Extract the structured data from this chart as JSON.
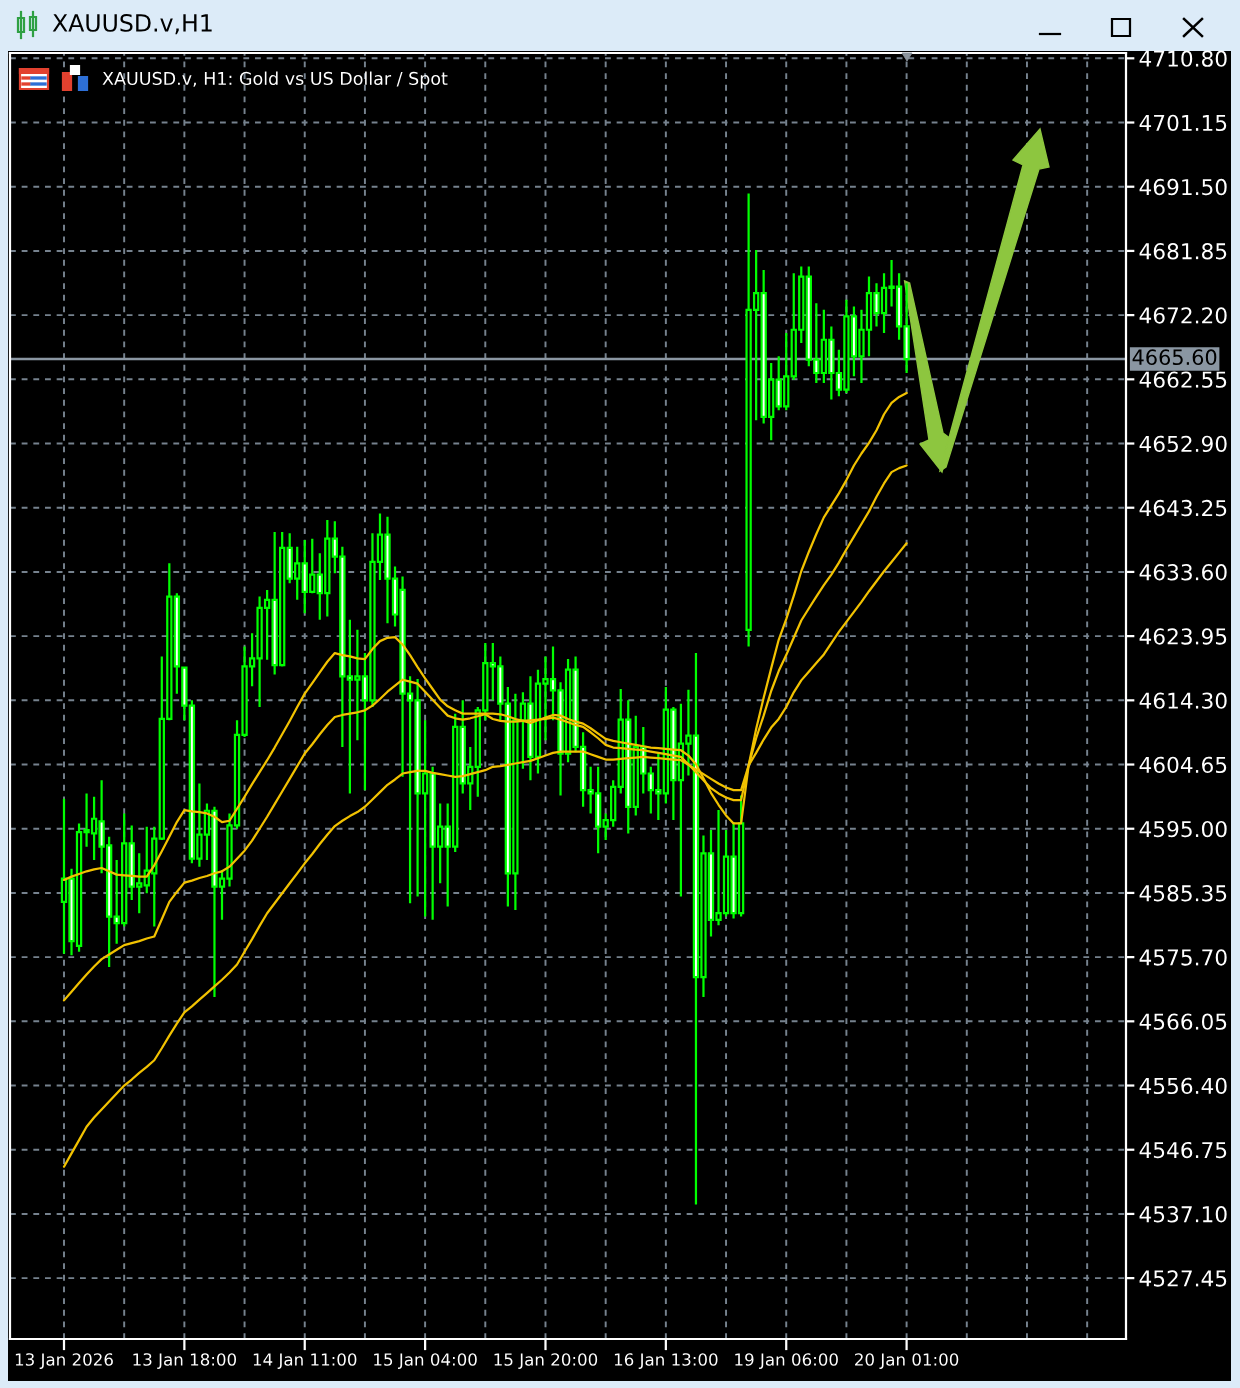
{
  "chart_data": {
    "type": "candlestick",
    "title": "XAUUSD.v,H1",
    "subtitle": "XAUUSD.v, H1: Gold vs US Dollar / Spot",
    "categories": [
      "13 Jan 2026",
      null,
      null,
      null,
      null,
      null,
      null,
      null,
      null,
      null,
      null,
      null,
      null,
      null,
      null,
      null,
      "13 Jan 18:00",
      null,
      null,
      null,
      null,
      null,
      null,
      null,
      null,
      null,
      null,
      null,
      null,
      null,
      null,
      null,
      "14 Jan 11:00",
      null,
      null,
      null,
      null,
      null,
      null,
      null,
      null,
      null,
      null,
      null,
      null,
      null,
      null,
      null,
      "15 Jan 04:00",
      null,
      null,
      null,
      null,
      null,
      null,
      null,
      null,
      null,
      null,
      null,
      null,
      null,
      null,
      null,
      "15 Jan 20:00",
      null,
      null,
      null,
      null,
      null,
      null,
      null,
      null,
      null,
      null,
      null,
      null,
      null,
      null,
      null,
      "16 Jan 13:00",
      null,
      null,
      null,
      null,
      null,
      null,
      null,
      null,
      null,
      null,
      null,
      null,
      null,
      null,
      null,
      "19 Jan 06:00",
      null,
      null,
      null,
      null,
      null,
      null,
      null,
      null,
      null,
      null,
      null,
      null,
      null,
      null,
      null,
      "20 Jan 01:00"
    ],
    "ylim": [
      4518.3,
      4711.6
    ],
    "yticks": [
      {
        "value": 4710.8,
        "label": "4710.80"
      },
      4701.15,
      {
        "value": 4691.5,
        "label": "4691.50"
      },
      4681.85,
      {
        "value": 4672.2,
        "label": "4672.20"
      },
      4662.55,
      {
        "value": 4652.9,
        "label": "4652.90"
      },
      4643.25,
      {
        "value": 4633.6,
        "label": "4633.60"
      },
      4623.95,
      {
        "value": 4614.3,
        "label": "4614.30"
      },
      4604.65,
      {
        "value": 4595,
        "label": "4595.00"
      },
      4585.35,
      {
        "value": 4575.7,
        "label": "4575.70"
      },
      4566.05,
      {
        "value": 4556.4,
        "label": "4556.40"
      },
      4546.75,
      {
        "value": 4537.1,
        "label": "4537.10"
      },
      4527.45
    ],
    "grid": true,
    "ref_lines": [
      {
        "axis": "y",
        "value": 4665.6,
        "label": "4665.60",
        "color": "#8a96a2"
      }
    ],
    "series": [
      {
        "color": "#00ff00",
        "ohlc": [
          [
            4584.0,
            4599.5,
            4576.2,
            4587.5
          ],
          [
            4587.5,
            4589.0,
            4576.0,
            4578.1
          ],
          [
            4577.4,
            4595.8,
            4576.5,
            4594.5
          ],
          [
            4594.5,
            4600.3,
            4592.3,
            4594.8
          ],
          [
            4594.3,
            4599.8,
            4590.3,
            4596.5
          ],
          [
            4596.1,
            4602.3,
            4588.3,
            4592.3
          ],
          [
            4592.5,
            4593.8,
            4574.2,
            4581.8
          ],
          [
            4581.8,
            4590.3,
            4577.7,
            4580.8
          ],
          [
            4580.8,
            4597.3,
            4580.3,
            4592.8
          ],
          [
            4592.8,
            4595.5,
            4584.3,
            4586.3
          ],
          [
            4586.3,
            4591.3,
            4582.3,
            4586.8
          ],
          [
            4586.5,
            4595.3,
            4585.3,
            4588.7
          ],
          [
            4588.3,
            4595.3,
            4580.3,
            4593.5
          ],
          [
            4593.5,
            4620.9,
            4593.3,
            4611.5
          ],
          [
            4611.5,
            4634.9,
            4611.3,
            4629.9
          ],
          [
            4629.9,
            4630.4,
            4615.3,
            4619.4
          ],
          [
            4619.2,
            4619.4,
            4611.3,
            4613.5
          ],
          [
            4613.5,
            4614.3,
            4589.8,
            4590.5
          ],
          [
            4590.5,
            4601.8,
            4589.3,
            4594.1
          ],
          [
            4594.1,
            4598.8,
            4590.3,
            4597.7
          ],
          [
            4597.7,
            4598.3,
            4569.7,
            4586.3
          ],
          [
            4586.3,
            4588.8,
            4581.3,
            4587.5
          ],
          [
            4587.5,
            4597.3,
            4586.3,
            4595.5
          ],
          [
            4595.5,
            4611.3,
            4595.0,
            4609.1
          ],
          [
            4609.1,
            4622.4,
            4608.8,
            4619.4
          ],
          [
            4619.4,
            4624.4,
            4616.4,
            4620.6
          ],
          [
            4620.6,
            4629.9,
            4613.3,
            4628.2
          ],
          [
            4628.2,
            4630.9,
            4620.4,
            4629.4
          ],
          [
            4629.4,
            4639.6,
            4618.2,
            4619.6
          ],
          [
            4619.6,
            4639.6,
            4619.4,
            4637.2
          ],
          [
            4637.2,
            4639.4,
            4631.9,
            4632.6
          ],
          [
            4632.6,
            4637.4,
            4629.4,
            4634.9
          ],
          [
            4634.9,
            4638.4,
            4627.4,
            4630.6
          ],
          [
            4630.6,
            4638.6,
            4630.4,
            4633.2
          ],
          [
            4633.2,
            4636.4,
            4626.4,
            4630.4
          ],
          [
            4630.4,
            4641.4,
            4626.9,
            4638.6
          ],
          [
            4638.6,
            4641.2,
            4633.4,
            4635.9
          ],
          [
            4635.9,
            4637.4,
            4607.3,
            4617.9
          ],
          [
            4617.9,
            4626.4,
            4600.3,
            4617.4
          ],
          [
            4617.4,
            4624.9,
            4608.3,
            4617.9
          ],
          [
            4617.9,
            4621.4,
            4600.8,
            4614.3
          ],
          [
            4614.3,
            4639.4,
            4613.3,
            4635.1
          ],
          [
            4635.1,
            4642.4,
            4632.4,
            4639.2
          ],
          [
            4639.2,
            4641.9,
            4625.9,
            4632.6
          ],
          [
            4632.6,
            4634.4,
            4625.4,
            4627.2
          ],
          [
            4630.9,
            4632.9,
            4602.8,
            4615.3
          ],
          [
            4615.3,
            4617.9,
            4583.8,
            4614.3
          ],
          [
            4614.3,
            4617.5,
            4584.8,
            4600.3
          ],
          [
            4600.3,
            4611.3,
            4581.8,
            4603.3
          ],
          [
            4603.3,
            4604.3,
            4581.3,
            4592.3
          ],
          [
            4592.3,
            4598.8,
            4586.8,
            4595.3
          ],
          [
            4595.3,
            4598.8,
            4583.3,
            4592.3
          ],
          [
            4592.3,
            4612.3,
            4591.5,
            4610.3
          ],
          [
            4610.3,
            4614.3,
            4600.3,
            4601.8
          ],
          [
            4601.8,
            4607.3,
            4597.8,
            4604.3
          ],
          [
            4604.3,
            4613.3,
            4599.8,
            4612.8
          ],
          [
            4612.8,
            4622.9,
            4611.3,
            4619.9
          ],
          [
            4619.9,
            4622.9,
            4614.3,
            4619.4
          ],
          [
            4619.4,
            4620.9,
            4611.3,
            4613.8
          ],
          [
            4613.8,
            4616.3,
            4583.3,
            4588.3
          ],
          [
            4588.3,
            4615.3,
            4582.8,
            4611.3
          ],
          [
            4611.3,
            4615.5,
            4604.0,
            4613.8
          ],
          [
            4613.8,
            4617.9,
            4602.3,
            4605.8
          ],
          [
            4605.8,
            4618.9,
            4603.3,
            4616.8
          ],
          [
            4616.8,
            4620.9,
            4608.3,
            4617.5
          ],
          [
            4617.5,
            4622.4,
            4611.3,
            4615.8
          ],
          [
            4615.8,
            4617.0,
            4600.0,
            4606.3
          ],
          [
            4606.3,
            4620.5,
            4605.0,
            4618.9
          ],
          [
            4618.9,
            4620.9,
            4606.5,
            4607.3
          ],
          [
            4607.3,
            4609.5,
            4598.3,
            4600.8
          ],
          [
            4600.8,
            4604.3,
            4597.3,
            4600.3
          ],
          [
            4600.3,
            4604.3,
            4591.3,
            4595.3
          ],
          [
            4595.3,
            4597.3,
            4593.3,
            4596.3
          ],
          [
            4596.3,
            4602.3,
            4595.3,
            4601.3
          ],
          [
            4601.3,
            4616.0,
            4600.3,
            4611.4
          ],
          [
            4611.4,
            4614.3,
            4594.3,
            4598.3
          ],
          [
            4598.3,
            4612.0,
            4597.0,
            4607.3
          ],
          [
            4607.3,
            4610.3,
            4600.3,
            4603.3
          ],
          [
            4603.3,
            4604.3,
            4597.3,
            4600.8
          ],
          [
            4600.8,
            4606.3,
            4596.3,
            4600.3
          ],
          [
            4600.3,
            4616.3,
            4598.8,
            4612.9
          ],
          [
            4612.9,
            4613.3,
            4596.3,
            4602.3
          ],
          [
            4602.3,
            4613.8,
            4584.8,
            4607.8
          ],
          [
            4607.8,
            4615.9,
            4603.0,
            4609.0
          ],
          [
            4609.0,
            4621.4,
            4538.5,
            4572.7
          ],
          [
            4572.7,
            4594.0,
            4569.7,
            4591.3
          ],
          [
            4591.3,
            4594.8,
            4578.8,
            4581.3
          ],
          [
            4581.3,
            4597.8,
            4580.5,
            4582.3
          ],
          [
            4582.3,
            4594.8,
            4581.8,
            4590.8
          ],
          [
            4590.8,
            4596.0,
            4581.5,
            4582.3
          ],
          [
            4582.3,
            4600.0,
            4581.8,
            4595.8
          ],
          [
            4624.9,
            4690.5,
            4622.4,
            4673.0
          ],
          [
            4673.0,
            4682.0,
            4656.4,
            4675.5
          ],
          [
            4675.5,
            4679.0,
            4655.9,
            4656.9
          ],
          [
            4656.9,
            4665.0,
            4653.4,
            4662.5
          ],
          [
            4662.5,
            4666.0,
            4657.9,
            4658.5
          ],
          [
            4658.5,
            4669.5,
            4657.9,
            4663.0
          ],
          [
            4663.0,
            4678.5,
            4662.5,
            4670.0
          ],
          [
            4670.0,
            4679.5,
            4668.0,
            4678.0
          ],
          [
            4678.0,
            4679.5,
            4664.5,
            4665.5
          ],
          [
            4665.5,
            4674.0,
            4662.0,
            4663.5
          ],
          [
            4663.5,
            4673.0,
            4662.0,
            4668.5
          ],
          [
            4668.5,
            4670.5,
            4659.5,
            4663.5
          ],
          [
            4663.5,
            4667.0,
            4660.0,
            4661.0
          ],
          [
            4661.0,
            4674.5,
            4660.5,
            4672.0
          ],
          [
            4672.0,
            4673.5,
            4663.0,
            4666.0
          ],
          [
            4666.0,
            4673.0,
            4662.0,
            4670.0
          ],
          [
            4670.0,
            4678.0,
            4666.0,
            4675.5
          ],
          [
            4675.5,
            4677.0,
            4670.5,
            4672.5
          ],
          [
            4672.5,
            4678.5,
            4669.5,
            4676.3
          ],
          [
            4676.3,
            4680.5,
            4673.5,
            4676.5
          ],
          [
            4676.5,
            4678.5,
            4668.5,
            4670.5
          ],
          [
            4670.5,
            4677.0,
            4663.5,
            4665.6
          ]
        ],
        "colors": [
          "#000000",
          "#ffffff",
          "#000000",
          "#000000",
          "#000000",
          "#ffffff",
          "#ffffff",
          "#ffffff",
          "#000000",
          "#ffffff",
          "#000000",
          "#000000",
          "#000000",
          "#000000",
          "#000000",
          "#ffffff",
          "#ffffff",
          "#ffffff",
          "#000000",
          "#000000",
          "#ffffff",
          "#000000",
          "#000000",
          "#000000",
          "#000000",
          "#000000",
          "#000000",
          "#000000",
          "#ffffff",
          "#000000",
          "#ffffff",
          "#000000",
          "#ffffff",
          "#000000",
          "#ffffff",
          "#000000",
          "#ffffff",
          "#ffffff",
          "#ffffff",
          "#000000",
          "#ffffff",
          "#000000",
          "#000000",
          "#ffffff",
          "#ffffff",
          "#ffffff",
          "#ffffff",
          "#ffffff",
          "#000000",
          "#ffffff",
          "#000000",
          "#ffffff",
          "#000000",
          "#ffffff",
          "#000000",
          "#000000",
          "#000000",
          "#ffffff",
          "#ffffff",
          "#ffffff",
          "#000000",
          "#000000",
          "#ffffff",
          "#000000",
          "#000000",
          "#ffffff",
          "#ffffff",
          "#000000",
          "#ffffff",
          "#ffffff",
          "#ffffff",
          "#ffffff",
          "#000000",
          "#000000",
          "#000000",
          "#ffffff",
          "#000000",
          "#ffffff",
          "#ffffff",
          "#ffffff",
          "#000000",
          "#ffffff",
          "#000000",
          "#000000",
          "#ffffff",
          "#000000",
          "#ffffff",
          "#000000",
          "#000000",
          "#ffffff",
          "#000000",
          "#000000",
          "#000000",
          "#ffffff",
          "#000000",
          "#ffffff",
          "#000000",
          "#000000",
          "#000000",
          "#ffffff",
          "#ffffff",
          "#000000",
          "#ffffff",
          "#ffffff",
          "#000000",
          "#ffffff",
          "#000000",
          "#000000",
          "#ffffff",
          "#000000",
          "#000000",
          "#ffffff",
          "#ffffff"
        ]
      },
      {
        "type": "line",
        "color": "#f2c200",
        "values": [
          4587.3,
          4587.8,
          4588.2,
          4588.6,
          4588.9,
          4589.1,
          4588.6,
          4588.1,
          4588.0,
          4587.9,
          4587.8,
          4587.8,
          4589.5,
          4591.6,
          4593.8,
          4596.0,
          4597.8,
          4597.6,
          4597.5,
          4597.3,
          4596.8,
          4596.0,
          4596.2,
          4598.0,
          4599.8,
          4601.7,
          4603.5,
          4605.3,
          4607.2,
          4609.2,
          4611.2,
          4613.3,
          4615.3,
          4616.9,
          4618.5,
          4620.1,
          4621.4,
          4621.1,
          4620.9,
          4620.6,
          4620.5,
          4622.0,
          4623.2,
          4623.7,
          4623.8,
          4622.7,
          4621.1,
          4619.3,
          4617.6,
          4616.0,
          4614.4,
          4613.4,
          4612.8,
          4612.3,
          4612.3,
          4612.3,
          4612.3,
          4612.3,
          4612.2,
          4611.9,
          4611.5,
          4611.2,
          4610.9,
          4611.3,
          4611.7,
          4612.1,
          4612.0,
          4611.5,
          4611.1,
          4610.8,
          4610.1,
          4609.3,
          4608.5,
          4608.2,
          4608.0,
          4607.8,
          4607.6,
          4607.4,
          4607.2,
          4607.1,
          4607.0,
          4606.9,
          4606.8,
          4606.0,
          4604.7,
          4602.6,
          4600.4,
          4598.6,
          4597.0,
          4595.8,
          4595.8,
          4604.5,
          4610.0,
          4614.7,
          4619.1,
          4623.4,
          4626.5,
          4630.0,
          4633.7,
          4636.6,
          4639.3,
          4641.8,
          4643.6,
          4645.4,
          4647.4,
          4649.6,
          4651.4,
          4653.0,
          4654.9,
          4657.3,
          4659.0,
          4659.9,
          4660.5
        ]
      },
      {
        "type": "line",
        "color": "#f2c200",
        "values": [
          4569.2,
          4570.5,
          4571.8,
          4573.1,
          4574.3,
          4575.4,
          4576.1,
          4576.8,
          4577.5,
          4577.8,
          4578.1,
          4578.5,
          4578.8,
          4581.4,
          4584.0,
          4585.5,
          4586.9,
          4587.2,
          4587.6,
          4587.9,
          4588.3,
          4588.6,
          4589.3,
          4590.5,
          4591.7,
          4593.2,
          4595.0,
          4596.8,
          4598.7,
          4600.6,
          4602.5,
          4604.4,
          4606.3,
          4607.7,
          4609.2,
          4610.6,
          4611.8,
          4612.1,
          4612.3,
          4612.5,
          4612.8,
          4613.5,
          4614.5,
          4615.6,
          4616.5,
          4617.4,
          4617.1,
          4616.8,
          4615.6,
          4614.4,
          4613.2,
          4612.0,
          4611.6,
          4611.4,
          4611.6,
          4611.9,
          4612.2,
          4611.5,
          4611.2,
          4611.1,
          4611.1,
          4611.2,
          4611.3,
          4611.4,
          4611.5,
          4611.7,
          4611.4,
          4611.0,
          4610.6,
          4610.3,
          4609.5,
          4608.6,
          4607.6,
          4607.2,
          4607.1,
          4607.0,
          4606.9,
          4606.8,
          4606.6,
          4606.4,
          4606.2,
          4606.0,
          4605.8,
          4604.7,
          4603.5,
          4602.3,
          4601.1,
          4600.3,
          4599.7,
          4599.3,
          4599.3,
          4604.5,
          4608.6,
          4612.0,
          4615.7,
          4618.7,
          4621.1,
          4623.7,
          4626.3,
          4628.1,
          4629.9,
          4631.6,
          4633.2,
          4635.0,
          4637.0,
          4638.9,
          4640.8,
          4642.7,
          4644.9,
          4646.9,
          4648.6,
          4649.2,
          4649.6
        ]
      },
      {
        "type": "line",
        "color": "#f2c200",
        "values": [
          4544.2,
          4546.2,
          4548.2,
          4550.2,
          4551.6,
          4552.8,
          4554.0,
          4555.2,
          4556.4,
          4557.3,
          4558.3,
          4559.2,
          4560.2,
          4562.0,
          4563.9,
          4565.7,
          4567.4,
          4568.3,
          4569.3,
          4570.3,
          4571.3,
          4572.3,
          4573.4,
          4574.6,
          4576.5,
          4578.4,
          4580.4,
          4582.3,
          4583.8,
          4585.3,
          4586.8,
          4588.3,
          4589.8,
          4591.2,
          4592.7,
          4594.1,
          4595.4,
          4596.2,
          4596.9,
          4597.5,
          4598.3,
          4599.4,
          4600.5,
          4601.6,
          4602.4,
          4603.3,
          4603.5,
          4603.7,
          4603.7,
          4603.4,
          4603.2,
          4603.0,
          4602.8,
          4602.9,
          4603.2,
          4603.5,
          4603.8,
          4604.3,
          4604.4,
          4604.6,
          4604.8,
          4605.0,
          4605.2,
          4605.6,
          4606.0,
          4606.4,
          4606.6,
          4606.6,
          4606.6,
          4606.6,
          4606.2,
          4605.8,
          4605.4,
          4605.4,
          4605.5,
          4605.6,
          4605.7,
          4605.8,
          4605.7,
          4605.6,
          4605.5,
          4605.4,
          4605.3,
          4604.6,
          4603.9,
          4603.2,
          4602.5,
          4601.8,
          4601.2,
          4600.8,
          4600.8,
          4604.5,
          4606.4,
          4608.4,
          4610.2,
          4611.5,
          4613.3,
          4615.5,
          4617.3,
          4618.6,
          4619.9,
          4621.2,
          4622.9,
          4624.6,
          4626.1,
          4627.6,
          4629.1,
          4630.7,
          4632.2,
          4633.7,
          4635.1,
          4636.5,
          4637.9
        ]
      }
    ]
  }
}
